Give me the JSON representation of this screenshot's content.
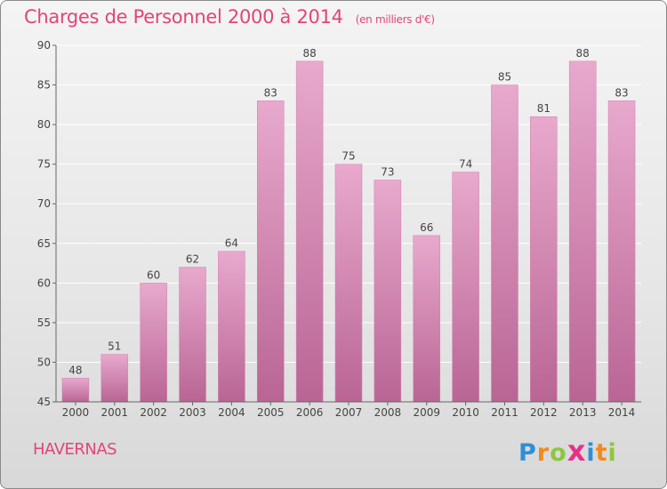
{
  "title": "Charges de Personnel 2000 à 2014",
  "subtitle": "(en milliers d'€)",
  "commune": "HAVERNAS",
  "logo": {
    "letters": [
      "P",
      "r",
      "o",
      "x",
      "i",
      "t",
      "i"
    ],
    "colors": [
      "#2f8fd6",
      "#f28a1a",
      "#8dc63f",
      "#e8308a",
      "#2f8fd6",
      "#f28a1a",
      "#8dc63f"
    ]
  },
  "colors": {
    "bar": "#d27fae",
    "bar_light": "#e8a9cd",
    "bar_dark": "#b96594",
    "text": "#e0457b"
  },
  "chart_data": {
    "type": "bar",
    "categories": [
      "2000",
      "2001",
      "2002",
      "2003",
      "2004",
      "2005",
      "2006",
      "2007",
      "2008",
      "2009",
      "2010",
      "2011",
      "2012",
      "2013",
      "2014"
    ],
    "values": [
      48,
      51,
      60,
      62,
      64,
      83,
      88,
      75,
      73,
      66,
      74,
      85,
      81,
      88,
      83
    ],
    "ylim": [
      45,
      90
    ],
    "yticks": [
      45,
      50,
      55,
      60,
      65,
      70,
      75,
      80,
      85,
      90
    ],
    "grid": true
  }
}
